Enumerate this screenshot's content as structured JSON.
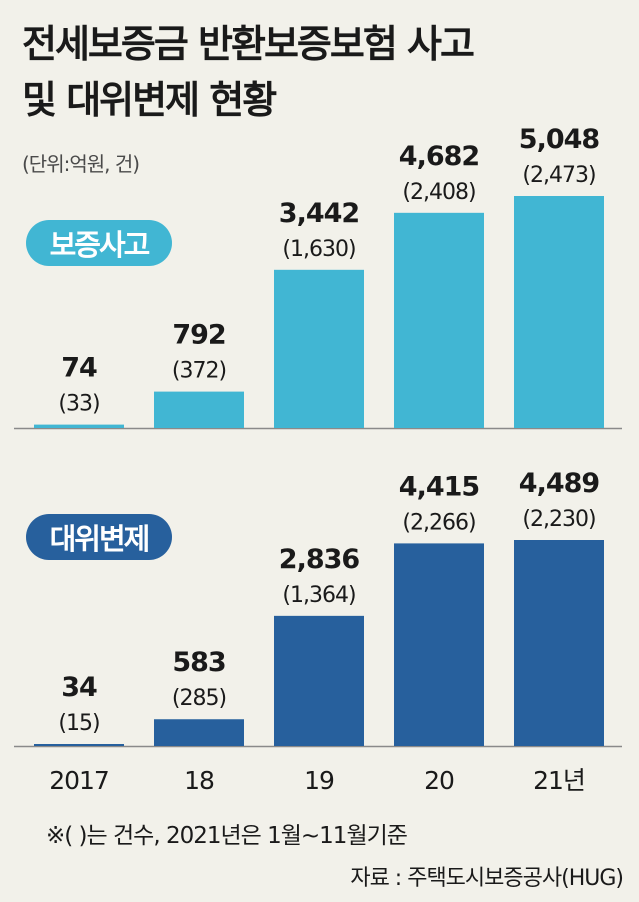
{
  "title_line1": "전세보증금 반환보증보험 사고",
  "title_line2": "및 대위변제 현황",
  "unit": "(단위:억원, 건)",
  "footnote": "※(    )는 건수, 2021년은 1월~11월기준",
  "source": "자료 : 주택도시보증공사(HUG)",
  "colors": {
    "accident": "#41b6d3",
    "subrogation": "#27609d",
    "background": "#f2f1ea"
  },
  "chart_data": [
    {
      "type": "bar",
      "name": "보증사고",
      "categories": [
        "2017",
        "18",
        "19",
        "20",
        "21년"
      ],
      "values": [
        74,
        792,
        3442,
        4682,
        5048
      ],
      "value_labels": [
        "74",
        "792",
        "3,442",
        "4,682",
        "5,048"
      ],
      "counts": [
        33,
        372,
        1630,
        2408,
        2473
      ],
      "count_labels": [
        "(33)",
        "(372)",
        "(1,630)",
        "(2,408)",
        "(2,473)"
      ]
    },
    {
      "type": "bar",
      "name": "대위변제",
      "categories": [
        "2017",
        "18",
        "19",
        "20",
        "21년"
      ],
      "values": [
        34,
        583,
        2836,
        4415,
        4489
      ],
      "value_labels": [
        "34",
        "583",
        "2,836",
        "4,415",
        "4,489"
      ],
      "counts": [
        15,
        285,
        1364,
        2266,
        2230
      ],
      "count_labels": [
        "(15)",
        "(285)",
        "(1,364)",
        "(2,266)",
        "(2,230)"
      ]
    }
  ]
}
